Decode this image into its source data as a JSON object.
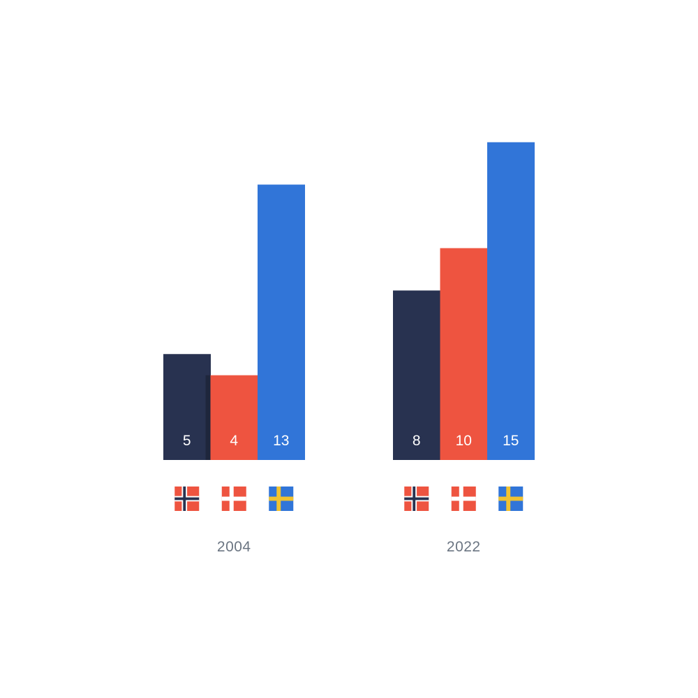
{
  "chart_data": {
    "type": "bar",
    "title": "",
    "xlabel": "",
    "ylabel": "",
    "ylim": [
      0,
      15
    ],
    "grid": false,
    "legend": "flag icons under each bar",
    "categories": [
      "2004",
      "2022"
    ],
    "series": [
      {
        "color": "#283250",
        "flag": "norway-flag-icon",
        "values": [
          5,
          8
        ]
      },
      {
        "color": "#ee5440",
        "flag": "denmark-flag-icon",
        "values": [
          4,
          10
        ]
      },
      {
        "color": "#3175d8",
        "flag": "sweden-flag-icon",
        "values": [
          13,
          15
        ]
      }
    ]
  },
  "colors": {
    "group_label": "#6b7582",
    "bar_label": "#ffffff",
    "flag_red": "#ee5440",
    "flag_blue_dark": "#283250",
    "flag_blue": "#3175d8",
    "flag_yellow": "#f0c230"
  }
}
